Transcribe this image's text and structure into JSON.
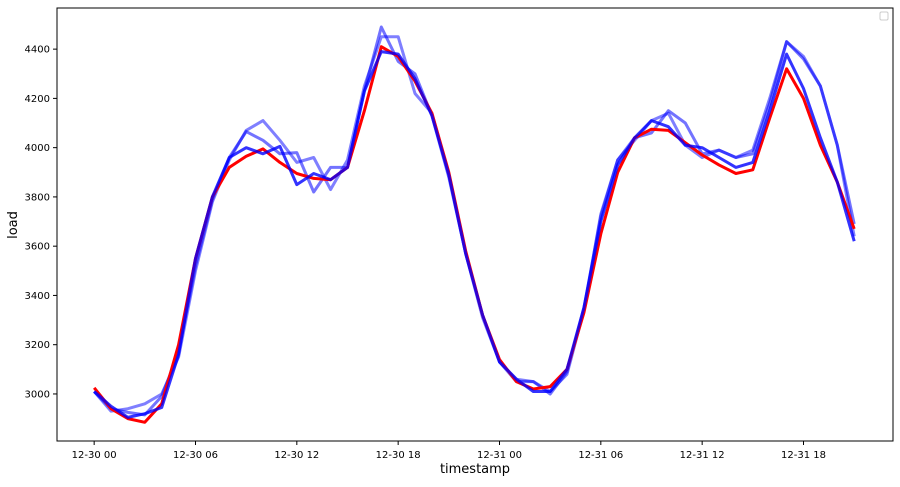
{
  "chart_data": {
    "type": "line",
    "title": "",
    "xlabel": "timestamp",
    "ylabel": "load",
    "x_unit": "hours from 12-30 00",
    "xlim_hours": [
      -2.2,
      47.3
    ],
    "ylim": [
      2809,
      4567
    ],
    "x_ticks": [
      {
        "hour": 0,
        "label": "12-30 00"
      },
      {
        "hour": 6,
        "label": "12-30 06"
      },
      {
        "hour": 12,
        "label": "12-30 12"
      },
      {
        "hour": 18,
        "label": "12-30 18"
      },
      {
        "hour": 24,
        "label": "12-31 00"
      },
      {
        "hour": 30,
        "label": "12-31 06"
      },
      {
        "hour": 36,
        "label": "12-31 12"
      },
      {
        "hour": 42,
        "label": "12-31 18"
      }
    ],
    "y_ticks": [
      3000,
      3200,
      3400,
      3600,
      3800,
      4000,
      4200,
      4400
    ],
    "grid": false,
    "legend": {
      "placement": "top-right",
      "entries": []
    },
    "series": [
      {
        "color": "#0000ff",
        "opacity": 0.5,
        "values": [
          3010,
          2930,
          2940,
          2960,
          3000,
          3150,
          3500,
          3780,
          3950,
          4070,
          4110,
          4030,
          3940,
          3960,
          3830,
          3950,
          4250,
          4450,
          4450,
          4220,
          4140,
          3890,
          3570,
          3310,
          3130,
          3060,
          3050,
          3010,
          3080,
          3340,
          3730,
          3950,
          4030,
          4110,
          4140,
          4010,
          3960,
          3990,
          3960,
          3990,
          4200,
          4430,
          4370,
          4250,
          4010,
          3640
        ]
      },
      {
        "color": "#0000ff",
        "opacity": 0.55,
        "values": [
          3010,
          2940,
          2925,
          2915,
          2990,
          3170,
          3520,
          3790,
          3960,
          4065,
          4030,
          3975,
          3980,
          3820,
          3920,
          3920,
          4230,
          4490,
          4350,
          4300,
          4130,
          3880,
          3570,
          3320,
          3130,
          3050,
          3050,
          3000,
          3090,
          3350,
          3720,
          3950,
          4040,
          4060,
          4150,
          4100,
          3975,
          3990,
          3960,
          3975,
          4180,
          4430,
          4360,
          4250,
          4010,
          3690
        ]
      },
      {
        "color": "#ff0000",
        "opacity": 1,
        "values": [
          3025,
          2940,
          2900,
          2885,
          2960,
          3200,
          3550,
          3800,
          3920,
          3965,
          3995,
          3940,
          3895,
          3875,
          3870,
          3920,
          4150,
          4410,
          4370,
          4270,
          4140,
          3900,
          3580,
          3320,
          3140,
          3050,
          3020,
          3030,
          3100,
          3330,
          3650,
          3900,
          4040,
          4075,
          4070,
          4020,
          3970,
          3930,
          3895,
          3910,
          4120,
          4320,
          4200,
          4010,
          3860,
          3670
        ]
      },
      {
        "color": "#0000ff",
        "opacity": 0.8,
        "values": [
          3010,
          2950,
          2905,
          2920,
          2945,
          3160,
          3550,
          3800,
          3960,
          4000,
          3975,
          4005,
          3850,
          3895,
          3870,
          3920,
          4230,
          4390,
          4380,
          4280,
          4130,
          3890,
          3570,
          3320,
          3130,
          3060,
          3010,
          3010,
          3100,
          3350,
          3700,
          3930,
          4040,
          4110,
          4085,
          4010,
          4000,
          3960,
          3920,
          3940,
          4150,
          4380,
          4240,
          4040,
          3860,
          3620
        ]
      }
    ]
  }
}
